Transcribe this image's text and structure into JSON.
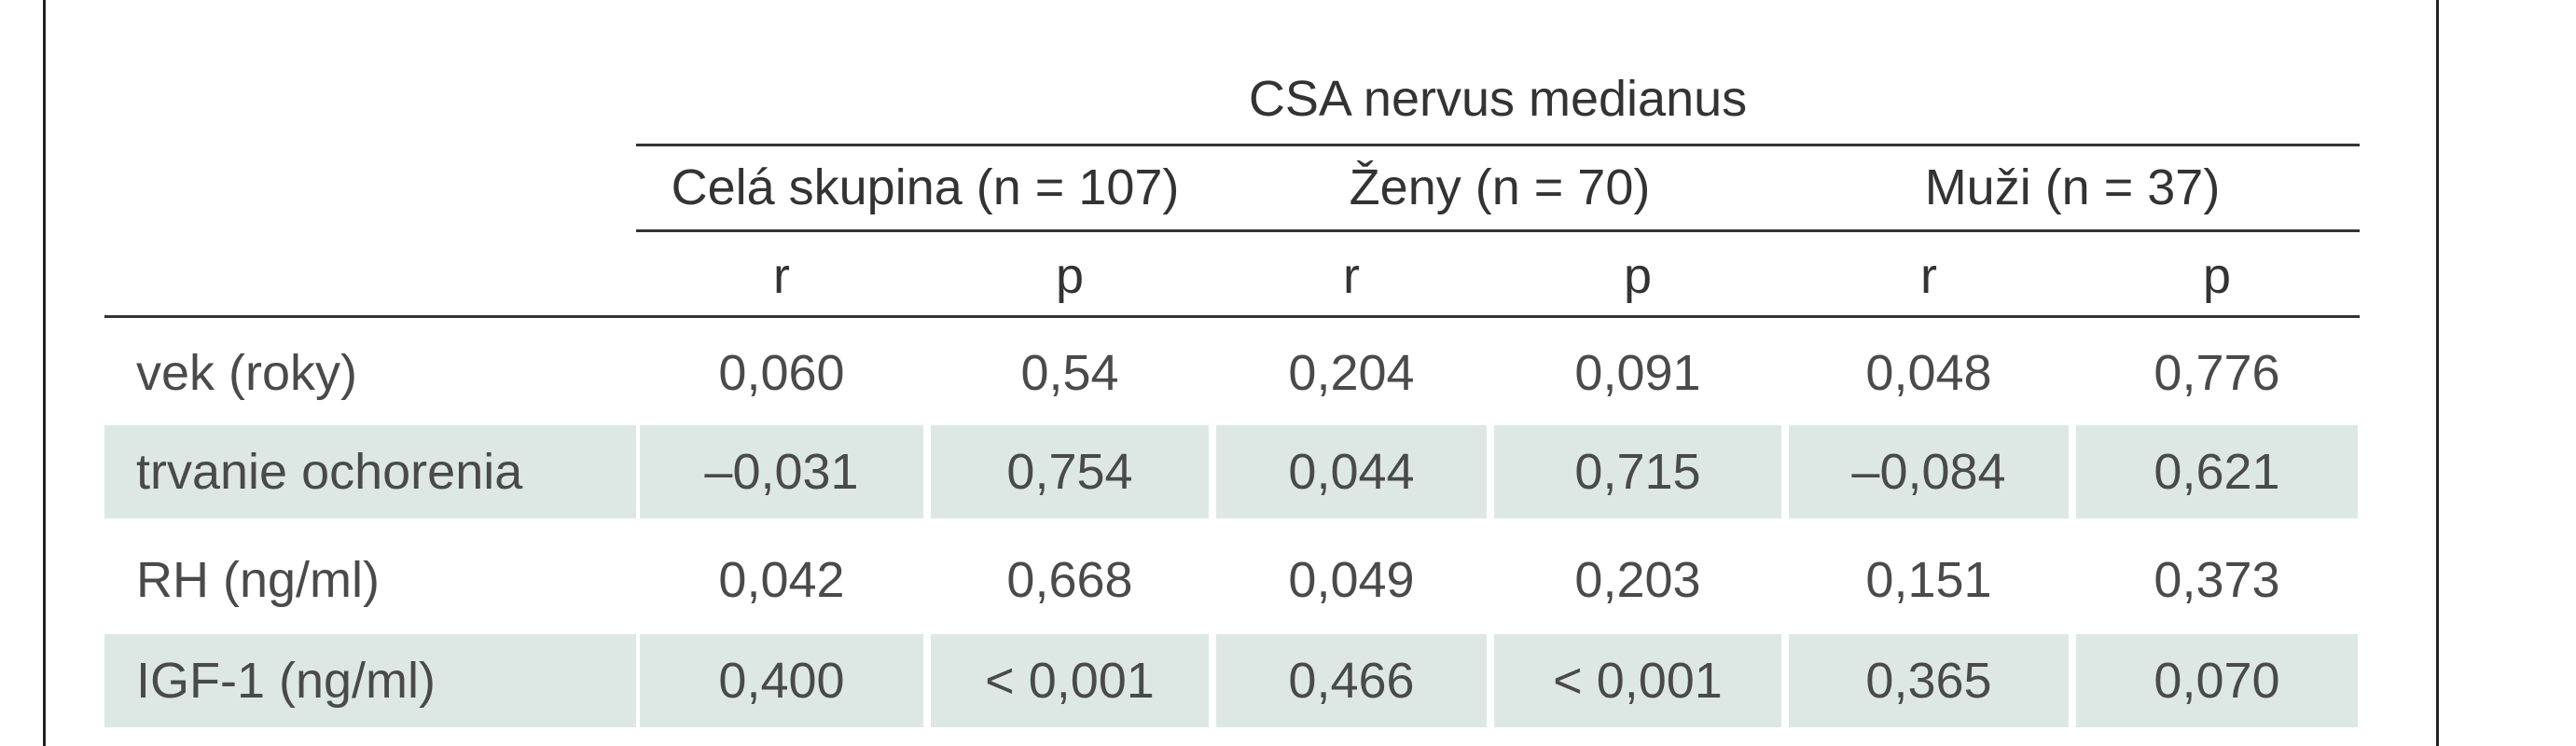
{
  "table": {
    "title": "CSA nervus medianus",
    "groups": [
      "Celá skupina (n = 107)",
      "Ženy (n = 70)",
      "Muži (n = 37)"
    ],
    "subheaders": [
      "r",
      "p",
      "r",
      "p",
      "r",
      "p"
    ],
    "rows": [
      {
        "label": "vek (roky)",
        "values": [
          "0,060",
          "0,54",
          "0,204",
          "0,091",
          "0,048",
          "0,776"
        ],
        "shaded": false
      },
      {
        "label": "trvanie ochorenia",
        "values": [
          "–0,031",
          "0,754",
          "0,044",
          "0,715",
          "–0,084",
          "0,621"
        ],
        "shaded": true
      },
      {
        "label": "RH (ng/ml)",
        "values": [
          "0,042",
          "0,668",
          "0,049",
          "0,203",
          "0,151",
          "0,373"
        ],
        "shaded": false
      },
      {
        "label": "IGF-1 (ng/ml)",
        "values": [
          "0,400",
          "< 0,001",
          "0,466",
          "< 0,001",
          "0,365",
          "0,070"
        ],
        "shaded": true
      }
    ]
  },
  "colors": {
    "shade": "#dde8e4",
    "rule": "#333333",
    "text": "#4a4a4a"
  }
}
